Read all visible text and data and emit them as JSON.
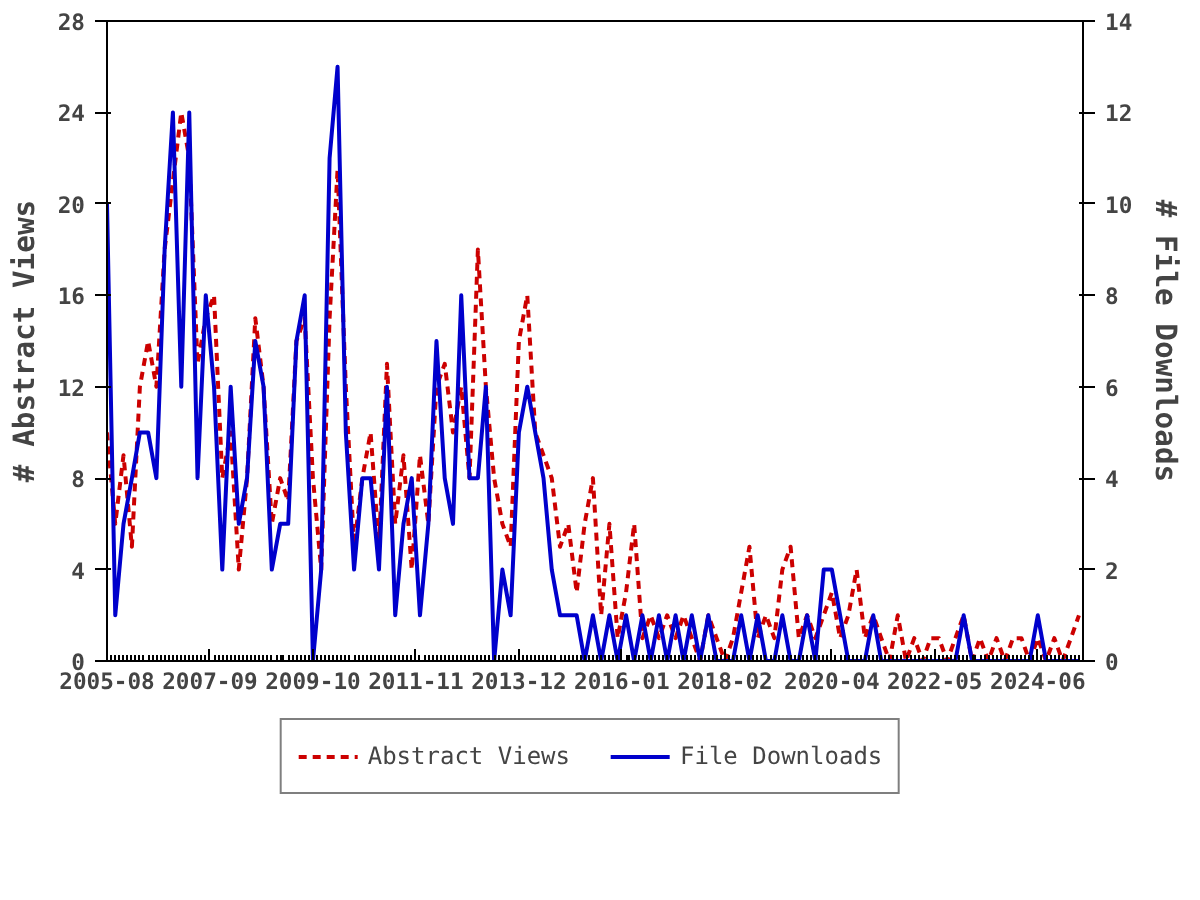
{
  "chart_data": {
    "type": "line",
    "xlabel": null,
    "ylabel": "# Abstract Views",
    "y2label": "# File Downloads",
    "x": [
      "2005-08",
      "2005-10",
      "2005-12",
      "2006-02",
      "2006-04",
      "2006-06",
      "2006-08",
      "2006-10",
      "2006-12",
      "2007-02",
      "2007-04",
      "2007-06",
      "2007-08",
      "2007-10",
      "2007-12",
      "2008-02",
      "2008-04",
      "2008-06",
      "2008-08",
      "2008-10",
      "2008-12",
      "2009-02",
      "2009-04",
      "2009-06",
      "2009-08",
      "2009-10",
      "2009-12",
      "2010-02",
      "2010-04",
      "2010-06",
      "2010-08",
      "2010-10",
      "2010-12",
      "2011-02",
      "2011-04",
      "2011-06",
      "2011-08",
      "2011-10",
      "2011-12",
      "2012-02",
      "2012-04",
      "2012-06",
      "2012-08",
      "2012-10",
      "2012-12",
      "2013-02",
      "2013-04",
      "2013-06",
      "2013-08",
      "2013-10",
      "2013-12",
      "2014-02",
      "2014-04",
      "2014-06",
      "2014-08",
      "2014-10",
      "2014-12",
      "2015-02",
      "2015-04",
      "2015-06",
      "2015-08",
      "2015-10",
      "2015-12",
      "2016-02",
      "2016-04",
      "2016-06",
      "2016-08",
      "2016-10",
      "2016-12",
      "2017-02",
      "2017-04",
      "2017-06",
      "2017-08",
      "2017-10",
      "2017-12",
      "2018-02",
      "2018-04",
      "2018-06",
      "2018-08",
      "2018-10",
      "2018-12",
      "2019-02",
      "2019-04",
      "2019-06",
      "2019-08",
      "2019-10",
      "2019-12",
      "2020-02",
      "2020-04",
      "2020-06",
      "2020-08",
      "2020-10",
      "2020-12",
      "2021-02",
      "2021-04",
      "2021-06",
      "2021-08",
      "2021-10",
      "2021-12",
      "2022-02",
      "2022-04",
      "2022-06",
      "2022-08",
      "2022-10",
      "2022-12",
      "2023-02",
      "2023-04",
      "2023-06",
      "2023-08",
      "2023-10",
      "2023-12",
      "2024-02",
      "2024-04",
      "2024-06",
      "2024-08",
      "2024-10",
      "2024-12",
      "2025-02",
      "2025-04"
    ],
    "series": [
      {
        "name": "Abstract Views",
        "color": "#cc0000",
        "line_style": "dashed",
        "axis": "y",
        "values": [
          10,
          6,
          9,
          5,
          12,
          14,
          12,
          18,
          21,
          24,
          22,
          13,
          15,
          16,
          8,
          10,
          4,
          8,
          15,
          12,
          6,
          8,
          7,
          14,
          15,
          8,
          4,
          15,
          21.5,
          12,
          5,
          8,
          10,
          5,
          13,
          6,
          9,
          4,
          9,
          6,
          12,
          13,
          10,
          12,
          8,
          18,
          12,
          8,
          6,
          5,
          14,
          16,
          10,
          9,
          8,
          5,
          6,
          3,
          6,
          8,
          2,
          6,
          1,
          3,
          6,
          1,
          2,
          1,
          2,
          1,
          2,
          1,
          0,
          2,
          1,
          0,
          1,
          3,
          5,
          1,
          2,
          1,
          4,
          5,
          1,
          2,
          1,
          2,
          3,
          1,
          2,
          4,
          1,
          2,
          1,
          0,
          2,
          0,
          1,
          0,
          1,
          1,
          0,
          1,
          2,
          0,
          1,
          0,
          1,
          0,
          1,
          1,
          0,
          1,
          0,
          1,
          0,
          1,
          2
        ]
      },
      {
        "name": "File Downloads",
        "color": "#0000cc",
        "line_style": "solid",
        "axis": "y2",
        "values": [
          10,
          1,
          3,
          4,
          5,
          5,
          4,
          9,
          12,
          6,
          12,
          4,
          8,
          6,
          2,
          6,
          3,
          4,
          7,
          6,
          2,
          3,
          3,
          7,
          8,
          0,
          2,
          11,
          13,
          5,
          2,
          4,
          4,
          2,
          6,
          1,
          3,
          4,
          1,
          3,
          7,
          4,
          3,
          8,
          4,
          4,
          6,
          0,
          2,
          1,
          5,
          6,
          5,
          4,
          2,
          1,
          1,
          1,
          0,
          1,
          0,
          1,
          0,
          1,
          0,
          1,
          0,
          1,
          0,
          1,
          0,
          1,
          0,
          1,
          0,
          0,
          0,
          1,
          0,
          1,
          0,
          0,
          1,
          0,
          0,
          1,
          0,
          2,
          2,
          1,
          0,
          0,
          0,
          1,
          0,
          0,
          0,
          0,
          0,
          0,
          0,
          0,
          0,
          0,
          1,
          0,
          0,
          0,
          0,
          0,
          0,
          0,
          0,
          1,
          0,
          0,
          0,
          0,
          0
        ]
      }
    ],
    "xlim": [
      "2005-08",
      "2025-05"
    ],
    "xticks": [
      {
        "value": "2005-08",
        "label": "2005-08"
      },
      {
        "value": "2007-09",
        "label": "2007-09"
      },
      {
        "value": "2009-10",
        "label": "2009-10"
      },
      {
        "value": "2011-11",
        "label": "2011-11"
      },
      {
        "value": "2013-12",
        "label": "2013-12"
      },
      {
        "value": "2016-01",
        "label": "2016-01"
      },
      {
        "value": "2018-02",
        "label": "2018-02"
      },
      {
        "value": "2020-04",
        "label": "2020-04"
      },
      {
        "value": "2022-05",
        "label": "2022-05"
      },
      {
        "value": "2024-06",
        "label": "2024-06"
      }
    ],
    "ylim": [
      0,
      28
    ],
    "yticks": [
      0,
      4,
      8,
      12,
      16,
      20,
      24,
      28
    ],
    "y2lim": [
      0,
      14
    ],
    "y2ticks": [
      0,
      2,
      4,
      6,
      8,
      10,
      12,
      14
    ],
    "grid": false,
    "legend": "bottom"
  }
}
